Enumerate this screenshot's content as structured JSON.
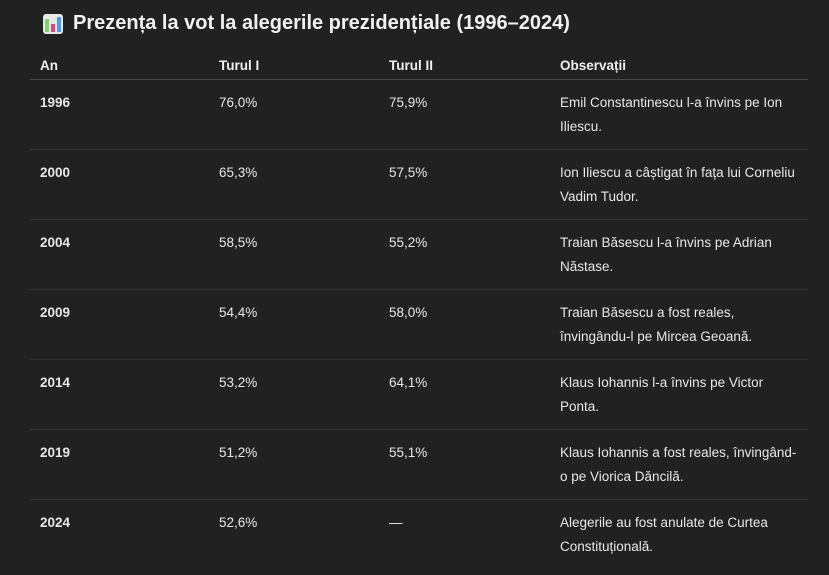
{
  "title": "Prezența la vot la alegerile prezidențiale (1996–2024)",
  "title_icon": "bar-chart-icon",
  "table": {
    "headers": [
      "An",
      "Turul I",
      "Turul II",
      "Observații"
    ],
    "rows": [
      [
        "1996",
        "76,0%",
        "75,9%",
        "Emil Constantinescu l-a învins pe Ion Iliescu."
      ],
      [
        "2000",
        "65,3%",
        "57,5%",
        "Ion Iliescu a câștigat în fața lui Corneliu Vadim Tudor."
      ],
      [
        "2004",
        "58,5%",
        "55,2%",
        "Traian Băsescu l-a învins pe Adrian Năstase."
      ],
      [
        "2009",
        "54,4%",
        "58,0%",
        "Traian Băsescu a fost reales, învingându-l pe Mircea Geoană."
      ],
      [
        "2014",
        "53,2%",
        "64,1%",
        "Klaus Iohannis l-a învins pe Victor Ponta."
      ],
      [
        "2019",
        "51,2%",
        "55,1%",
        "Klaus Iohannis a fost reales, învingând-o pe Viorica Dăncilă."
      ],
      [
        "2024",
        "52,6%",
        "—",
        "Alegerile au fost anulate de Curtea Constituțională."
      ]
    ]
  }
}
